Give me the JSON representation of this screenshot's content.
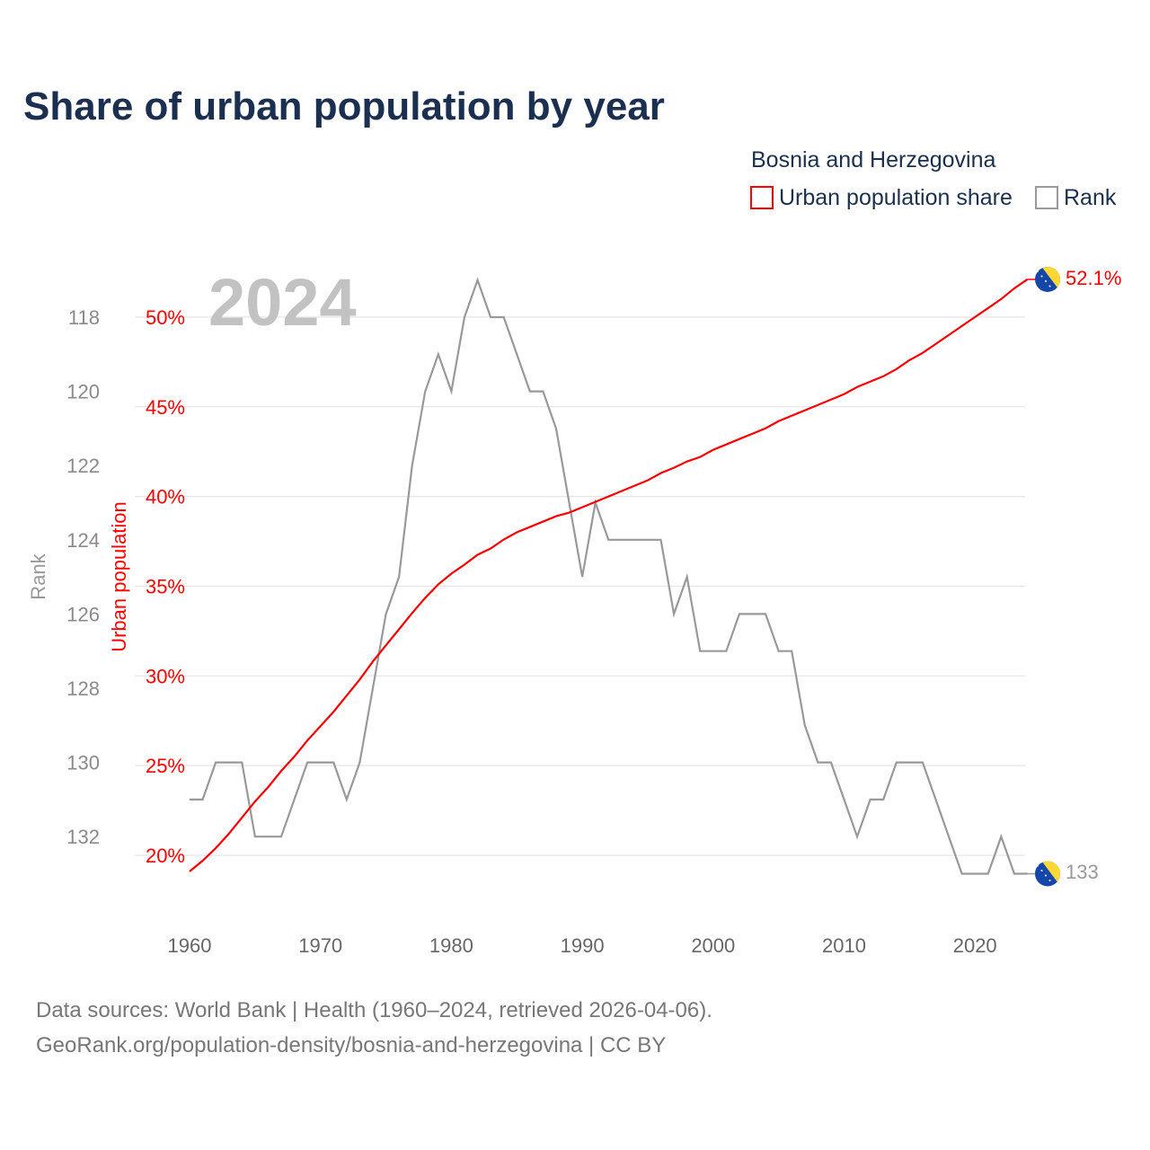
{
  "title": "Share of urban population by year",
  "legend": {
    "country": "Bosnia and Herzegovina",
    "items": [
      {
        "label": "Urban population share",
        "color": "#ff0000"
      },
      {
        "label": "Rank",
        "color": "#999999"
      }
    ]
  },
  "year_label": "2024",
  "end_labels": {
    "urban": "52.1%",
    "rank": "133"
  },
  "footer": {
    "line1": "Data sources: World Bank | Health (1960–2024, retrieved 2026-04-06).",
    "line2": "GeoRank.org/population-density/bosnia-and-herzegovina | CC BY"
  },
  "chart_data": {
    "type": "line",
    "title": "Share of urban population by year",
    "xlabel": "",
    "ylabel_left": "Rank",
    "ylabel_right": "Urban population",
    "x_ticks": [
      "1960",
      "1970",
      "1980",
      "1990",
      "2000",
      "2010",
      "2020"
    ],
    "urban_ticks": [
      "20%",
      "25%",
      "30%",
      "35%",
      "40%",
      "45%",
      "50%"
    ],
    "rank_ticks": [
      "118",
      "120",
      "122",
      "124",
      "126",
      "128",
      "130",
      "132"
    ],
    "xlim": [
      1960,
      2024
    ],
    "urban_ylim": [
      20,
      50
    ],
    "rank_ylim": [
      118,
      132
    ],
    "grid": true,
    "legend_position": "top-right",
    "x": [
      1960,
      1961,
      1962,
      1963,
      1964,
      1965,
      1966,
      1967,
      1968,
      1969,
      1970,
      1971,
      1972,
      1973,
      1974,
      1975,
      1976,
      1977,
      1978,
      1979,
      1980,
      1981,
      1982,
      1983,
      1984,
      1985,
      1986,
      1987,
      1988,
      1989,
      1990,
      1991,
      1992,
      1993,
      1994,
      1995,
      1996,
      1997,
      1998,
      1999,
      2000,
      2001,
      2002,
      2003,
      2004,
      2005,
      2006,
      2007,
      2008,
      2009,
      2010,
      2011,
      2012,
      2013,
      2014,
      2015,
      2016,
      2017,
      2018,
      2019,
      2020,
      2021,
      2022,
      2023,
      2024
    ],
    "series": [
      {
        "name": "Urban population share",
        "unit": "%",
        "color": "#ff0000",
        "values": [
          19.1,
          19.7,
          20.4,
          21.2,
          22.1,
          23.0,
          23.8,
          24.7,
          25.5,
          26.4,
          27.2,
          28.0,
          28.9,
          29.8,
          30.8,
          31.7,
          32.6,
          33.5,
          34.35,
          35.1,
          35.7,
          36.2,
          36.75,
          37.1,
          37.6,
          38.0,
          38.3,
          38.6,
          38.9,
          39.1,
          39.4,
          39.7,
          40.0,
          40.3,
          40.6,
          40.9,
          41.3,
          41.6,
          41.95,
          42.2,
          42.6,
          42.9,
          43.2,
          43.5,
          43.8,
          44.2,
          44.5,
          44.8,
          45.1,
          45.4,
          45.7,
          46.1,
          46.4,
          46.7,
          47.1,
          47.6,
          48.0,
          48.5,
          49.0,
          49.5,
          50.0,
          50.5,
          51.0,
          51.6,
          52.1
        ]
      },
      {
        "name": "Rank",
        "color": "#999999",
        "values": [
          131,
          131,
          130,
          130,
          130,
          132,
          132,
          132,
          131,
          130,
          130,
          130,
          131,
          130,
          128,
          126,
          125,
          122,
          120,
          119,
          120,
          118,
          117,
          118,
          118,
          119,
          120,
          120,
          121,
          123,
          125,
          123,
          124,
          124,
          124,
          124,
          124,
          126,
          125,
          127,
          127,
          127,
          126,
          126,
          126,
          127,
          127,
          129,
          130,
          130,
          131,
          132,
          131,
          131,
          130,
          130,
          130,
          131,
          132,
          133,
          133,
          133,
          132,
          133,
          133
        ]
      }
    ]
  }
}
